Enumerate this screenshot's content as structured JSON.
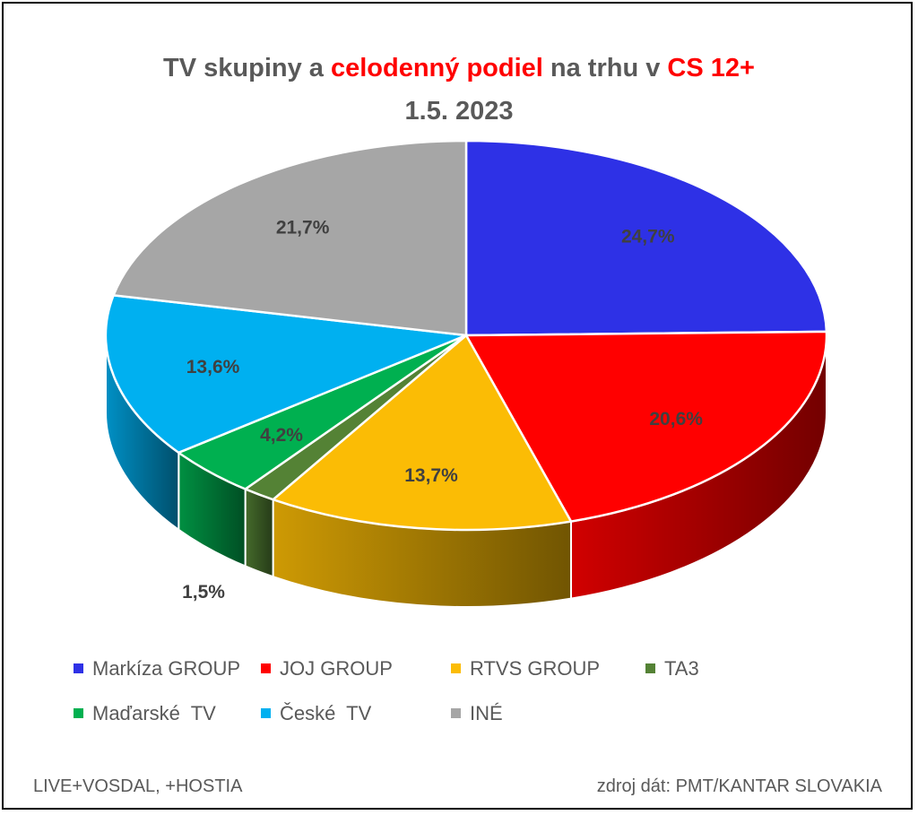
{
  "title": {
    "part1": "TV skupiny a ",
    "part2": "celodenný podiel",
    "part3": " na trhu v ",
    "part4": "CS 12+",
    "line2": "1.5. 2023"
  },
  "chart_data": {
    "type": "pie",
    "subtype": "3d",
    "title": "TV skupiny a celodenný podiel na trhu v CS 12+ 1.5. 2023",
    "legend_position": "bottom",
    "slices": [
      {
        "name": "Markíza GROUP",
        "value": 24.7,
        "label": "24,7%",
        "color": "#2e31e6"
      },
      {
        "name": "JOJ GROUP",
        "value": 20.6,
        "label": "20,6%",
        "color": "#ff0000"
      },
      {
        "name": "RTVS GROUP",
        "value": 13.7,
        "label": "13,7%",
        "color": "#fbbc05"
      },
      {
        "name": "TA3",
        "value": 1.5,
        "label": "1,5%",
        "color": "#548235"
      },
      {
        "name": "Maďarské  TV",
        "value": 4.2,
        "label": "4,2%",
        "color": "#00b050"
      },
      {
        "name": "České  TV",
        "value": 13.6,
        "label": "13,6%",
        "color": "#00b0f0"
      },
      {
        "name": "INÉ",
        "value": 21.7,
        "label": "21,7%",
        "color": "#a6a6a6"
      }
    ]
  },
  "footer": {
    "left": "LIVE+VOSDAL,  +HOSTIA",
    "right": "zdroj dát: PMT/KANTAR SLOVAKIA"
  }
}
